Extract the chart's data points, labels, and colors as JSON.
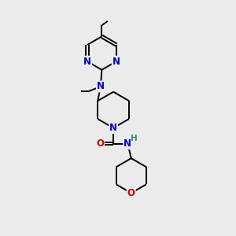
{
  "bg_color": "#ebebeb",
  "atom_colors": {
    "N": "#0000cc",
    "O": "#cc0000",
    "C": "#000000",
    "H": "#3a8080"
  },
  "line_color": "#000000",
  "line_width": 1.4,
  "fig_size": [
    3.0,
    3.0
  ],
  "dpi": 100
}
